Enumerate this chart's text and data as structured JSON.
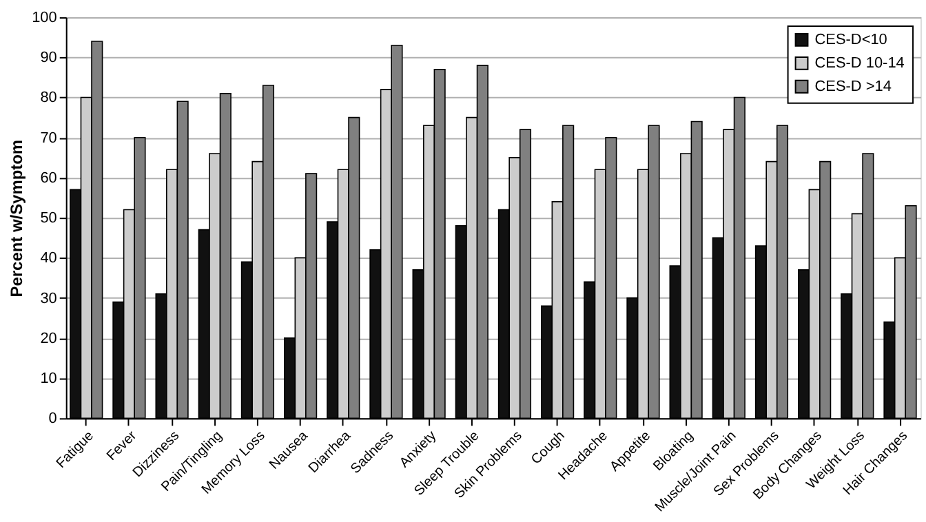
{
  "chart_data": {
    "type": "bar",
    "ylabel": "Percent w/Symptom",
    "categories": [
      "Fatigue",
      "Fever",
      "Dizziness",
      "Pain/Tingling",
      "Memory Loss",
      "Nausea",
      "Diarrhea",
      "Sadness",
      "Anxiety",
      "Sleep Trouble",
      "Skin Problems",
      "Cough",
      "Headache",
      "Appetite",
      "Bloating",
      "Muscle/Joint Pain",
      "Sex Problems",
      "Body Changes",
      "Weight Loss",
      "Hair Changes"
    ],
    "series": [
      {
        "name": "CES-D<10",
        "color": "#111111",
        "values": [
          57,
          29,
          31,
          47,
          39,
          20,
          49,
          42,
          37,
          48,
          52,
          28,
          34,
          30,
          38,
          45,
          43,
          37,
          31,
          24
        ]
      },
      {
        "name": "CES-D 10-14",
        "color": "#cccccc",
        "values": [
          80,
          52,
          62,
          66,
          64,
          40,
          62,
          82,
          73,
          75,
          65,
          54,
          62,
          62,
          66,
          72,
          64,
          57,
          51,
          40
        ]
      },
      {
        "name": "CES-D >14",
        "color": "#808080",
        "values": [
          94,
          70,
          79,
          81,
          83,
          61,
          75,
          93,
          87,
          88,
          72,
          73,
          70,
          73,
          74,
          80,
          73,
          64,
          66,
          53
        ]
      }
    ],
    "ylim": [
      0,
      100
    ],
    "yticks": [
      0,
      10,
      20,
      30,
      40,
      50,
      60,
      70,
      80,
      90,
      100
    ],
    "grid": "y",
    "legend": "top right"
  }
}
